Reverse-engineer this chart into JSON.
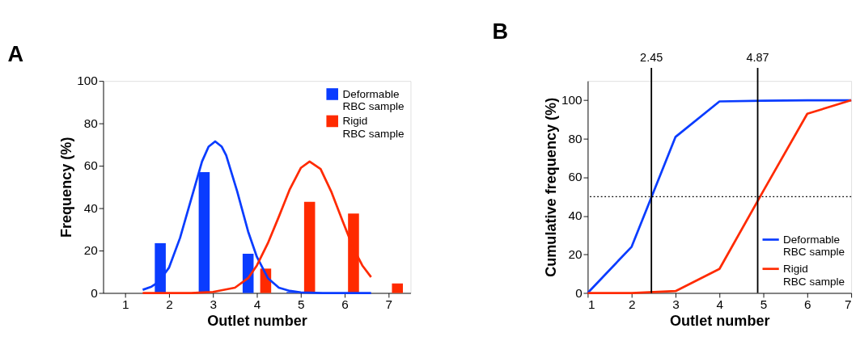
{
  "chart_data": [
    {
      "type": "bar",
      "title": "A",
      "xlabel": "Outlet number",
      "ylabel": "Frequency (%)",
      "xlim": [
        0.5,
        7.5
      ],
      "xticks": [
        1,
        2,
        3,
        4,
        5,
        6,
        7
      ],
      "ylim": [
        0,
        100
      ],
      "yticks": [
        0,
        20,
        40,
        60,
        80,
        100
      ],
      "grid": false,
      "legend": "top right",
      "series": [
        {
          "name": "Deformable RBC sample",
          "color": "#0a3cff",
          "type": "bar",
          "x": [
            1.8,
            2.8,
            3.8,
            4.8
          ],
          "values": [
            23.5,
            57,
            18.5,
            0.5
          ]
        },
        {
          "name": "Rigid RBC sample",
          "color": "#ff2a00",
          "type": "bar",
          "x": [
            4.2,
            5.2,
            6.2,
            7.2
          ],
          "values": [
            11.5,
            43,
            37.5,
            4.5
          ]
        },
        {
          "color": "#0a3cff",
          "type": "line",
          "marker": "none",
          "x": [
            1.4,
            1.6,
            1.75,
            2.0,
            2.25,
            2.5,
            2.75,
            2.9,
            3.05,
            3.2,
            3.3,
            3.55,
            3.8,
            4.0,
            4.25,
            4.5,
            4.75,
            5.0,
            5.5,
            6.0,
            6.6
          ],
          "values": [
            1.5,
            3,
            5,
            12,
            26,
            44,
            62,
            69,
            71.5,
            69,
            65,
            48,
            29,
            17,
            7,
            2.5,
            1,
            0.3,
            0,
            0,
            0
          ]
        },
        {
          "color": "#ff2a00",
          "type": "line",
          "marker": "none",
          "x": [
            1.4,
            2.5,
            3.0,
            3.5,
            3.8,
            4.0,
            4.25,
            4.5,
            4.75,
            5.0,
            5.2,
            5.45,
            5.7,
            5.95,
            6.2,
            6.4,
            6.6
          ],
          "values": [
            0,
            0,
            0.5,
            2.5,
            7,
            13,
            23.5,
            36,
            49,
            59,
            62,
            58.5,
            47.5,
            34,
            21,
            13,
            7.5
          ]
        }
      ]
    },
    {
      "type": "line",
      "title": "B",
      "xlabel": "Outlet number",
      "ylabel": "Cumulative frequency (%)",
      "xlim": [
        1,
        7
      ],
      "xticks": [
        1,
        2,
        3,
        4,
        5,
        6,
        7
      ],
      "ylim": [
        0,
        110
      ],
      "yticks": [
        0,
        20,
        40,
        60,
        80,
        100
      ],
      "grid": false,
      "legend": "bottom right",
      "marker": "none",
      "line_style": "solid",
      "x": [
        1,
        2,
        3,
        4,
        5,
        6,
        7
      ],
      "series": [
        {
          "name": "Deformable RBC sample",
          "color": "#0a3cff",
          "values": [
            0,
            24,
            81,
            99.4,
            99.8,
            100,
            100
          ]
        },
        {
          "name": "Rigid RBC sample",
          "color": "#ff2a00",
          "values": [
            0,
            0,
            1,
            12.5,
            53,
            93,
            100
          ]
        }
      ],
      "ref_lines": [
        {
          "axis": "x",
          "value": 2.45,
          "label": "2.45",
          "color": "#000000",
          "line_style": "solid"
        },
        {
          "axis": "x",
          "value": 4.87,
          "label": "4.87",
          "color": "#000000",
          "line_style": "solid"
        },
        {
          "axis": "y",
          "value": 50,
          "label": null,
          "color": "#000000",
          "line_style": "dotted"
        }
      ]
    }
  ]
}
